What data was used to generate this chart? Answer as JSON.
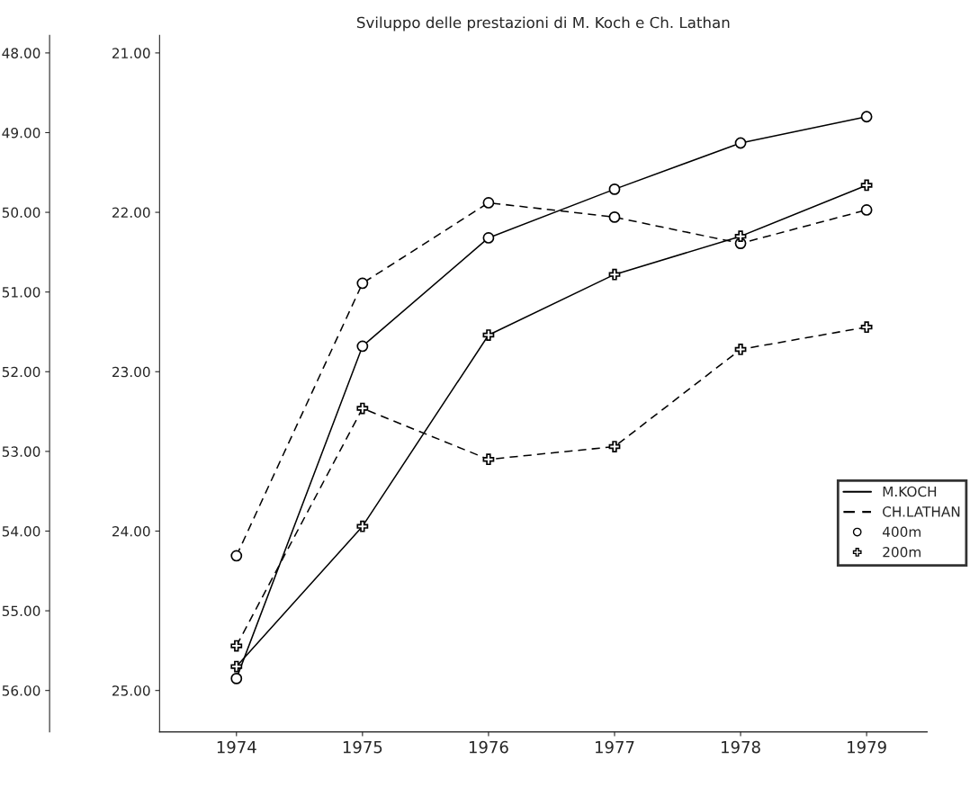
{
  "chart_data": {
    "type": "line",
    "title": "Sviluppo delle prestazioni di M. Koch e Ch. Lathan",
    "x": [
      1974,
      1975,
      1976,
      1977,
      1978,
      1979
    ],
    "xlim": [
      1973.39,
      1979.48
    ],
    "xticks": [
      1974,
      1975,
      1976,
      1977,
      1978,
      1979
    ],
    "series": [
      {
        "color": "#000000",
        "line_style": "solid",
        "marker": "circle",
        "values": [
          55.85,
          51.68,
          50.32,
          49.71,
          49.13,
          48.8
        ]
      },
      {
        "color": "#000000",
        "line_style": "dashed",
        "marker": "circle",
        "values": [
          54.31,
          50.89,
          49.88,
          50.06,
          50.39,
          49.97
        ]
      },
      {
        "color": "#000000",
        "line_style": "solid",
        "marker": "cross",
        "axis": "y2",
        "values": [
          24.85,
          23.97,
          22.77,
          22.39,
          22.15,
          21.83
        ]
      },
      {
        "color": "#000000",
        "line_style": "dashed",
        "marker": "cross",
        "axis": "y2",
        "values": [
          24.72,
          23.23,
          23.55,
          23.47,
          22.86,
          22.72
        ]
      }
    ],
    "ylim": [
      56.52,
      47.78
    ],
    "yticks": [
      {
        "value": 48,
        "label": "48.00"
      },
      {
        "value": 49,
        "label": "49.00"
      },
      {
        "value": 50,
        "label": "50.00"
      },
      {
        "value": 51,
        "label": "51.00"
      },
      {
        "value": 52,
        "label": "52.00"
      },
      {
        "value": 53,
        "label": "53.00"
      },
      {
        "value": 54,
        "label": "54.00"
      },
      {
        "value": 55,
        "label": "55.00"
      },
      {
        "value": 56,
        "label": "56.00"
      }
    ],
    "y2lim": [
      25.26,
      20.89
    ],
    "y2ticks": [
      {
        "value": 21,
        "label": "21.00"
      },
      {
        "value": 22,
        "label": "22.00"
      },
      {
        "value": 23,
        "label": "23.00"
      },
      {
        "value": 24,
        "label": "24.00"
      },
      {
        "value": 25,
        "label": "25.00"
      }
    ],
    "annotations": [
      "M.KOCH",
      "CH.LATHAN",
      "400m",
      "200m"
    ],
    "grid": false
  }
}
